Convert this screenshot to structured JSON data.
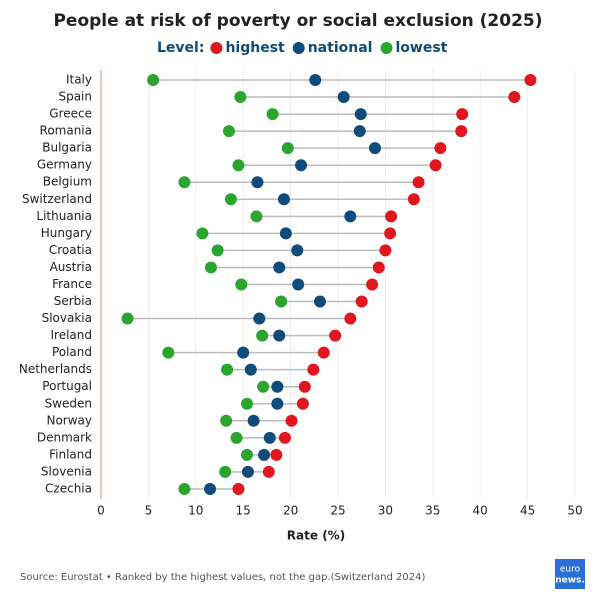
{
  "chart_data": {
    "type": "dotplot",
    "title": "People at risk of poverty or social exclusion (2025)",
    "legend_title": "Level:",
    "categories": [
      "Italy",
      "Spain",
      "Greece",
      "Romania",
      "Bulgaria",
      "Germany",
      "Belgium",
      "Switzerland",
      "Lithuania",
      "Hungary",
      "Croatia",
      "Austria",
      "France",
      "Serbia",
      "Slovakia",
      "Ireland",
      "Poland",
      "Netherlands",
      "Portugal",
      "Sweden",
      "Norway",
      "Denmark",
      "Finland",
      "Slovenia",
      "Czechia"
    ],
    "series": [
      {
        "name": "highest",
        "color": "#e0171f",
        "values": [
          45.3,
          43.6,
          38.1,
          38.0,
          35.8,
          35.3,
          33.5,
          33.0,
          30.6,
          30.5,
          30.0,
          29.3,
          28.6,
          27.5,
          26.3,
          24.7,
          23.5,
          22.4,
          21.5,
          21.3,
          20.1,
          19.4,
          18.5,
          17.7,
          14.5
        ]
      },
      {
        "name": "national",
        "color": "#0f4c7c",
        "values": [
          22.6,
          25.6,
          27.4,
          27.3,
          28.9,
          21.1,
          16.5,
          19.3,
          26.3,
          19.5,
          20.7,
          18.8,
          20.8,
          23.1,
          16.7,
          18.8,
          15.0,
          15.8,
          18.6,
          18.6,
          16.1,
          17.8,
          17.2,
          15.5,
          11.5
        ]
      },
      {
        "name": "lowest",
        "color": "#2aa62e",
        "values": [
          5.5,
          14.7,
          18.1,
          13.5,
          19.7,
          14.5,
          8.8,
          13.7,
          16.4,
          10.7,
          12.3,
          11.6,
          14.8,
          19.0,
          2.8,
          17.0,
          7.1,
          13.3,
          17.1,
          15.4,
          13.2,
          14.3,
          15.4,
          13.1,
          8.8
        ]
      }
    ],
    "xlabel": "Rate (%)",
    "xlim": [
      0,
      50
    ],
    "xticks": [
      0,
      5,
      10,
      15,
      20,
      25,
      30,
      35,
      40,
      45,
      50
    ],
    "source": "Source: Eurostat • Ranked by the highest values, not the gap.(Switzerland 2024)",
    "logo": [
      "euro",
      "news."
    ]
  }
}
